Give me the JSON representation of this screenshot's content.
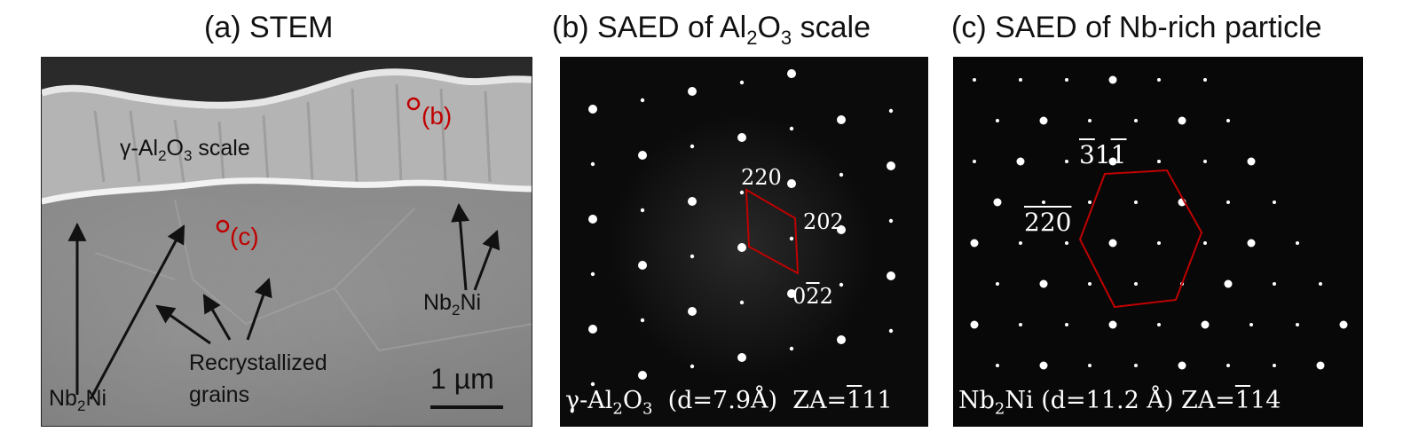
{
  "figure": {
    "panel_a": {
      "title": "(a) STEM",
      "scale_label": "γ-Al",
      "scale_sub": "2",
      "scale_mid": "O",
      "scale_sub2": "3",
      "scale_tail": " scale",
      "marker_b": "(b)",
      "marker_c": "(c)",
      "nb_left_a": "Nb",
      "nb_left_sub": "2",
      "nb_left_b": "Ni",
      "nb_right_a": "Nb",
      "nb_right_sub": "2",
      "nb_right_b": "Ni",
      "recryst_1": "Recrystallized",
      "recryst_2": "grains",
      "scalebar": "1 µm"
    },
    "panel_b": {
      "title_a": "(b) SAED of Al",
      "title_sub": "2",
      "title_mid": "O",
      "title_sub2": "3",
      "title_tail": " scale",
      "idx_220": "220",
      "idx_202": "202",
      "idx_022_a": "0",
      "idx_022_bar": "2",
      "idx_022_b": "2",
      "bottom_a": "γ-Al",
      "bottom_sub": "2",
      "bottom_mid": "O",
      "bottom_sub2": "3",
      "bottom_tail": "  (d=7.9Å)  ZA=",
      "za_bar": "1",
      "za_tail": "11"
    },
    "panel_c": {
      "title": "(c) SAED of Nb-rich particle",
      "idx_311_bar1": "3",
      "idx_311_mid": "1",
      "idx_311_bar2": "1",
      "idx_220_bar": "220",
      "bottom_a": "Nb",
      "bottom_sub": "2",
      "bottom_tail": "Ni (d=11.2 Å) ZA=",
      "za_bar": "1",
      "za_tail": "14"
    },
    "colors": {
      "marker_red": "#c00000",
      "overlay_red": "#c00000"
    }
  }
}
